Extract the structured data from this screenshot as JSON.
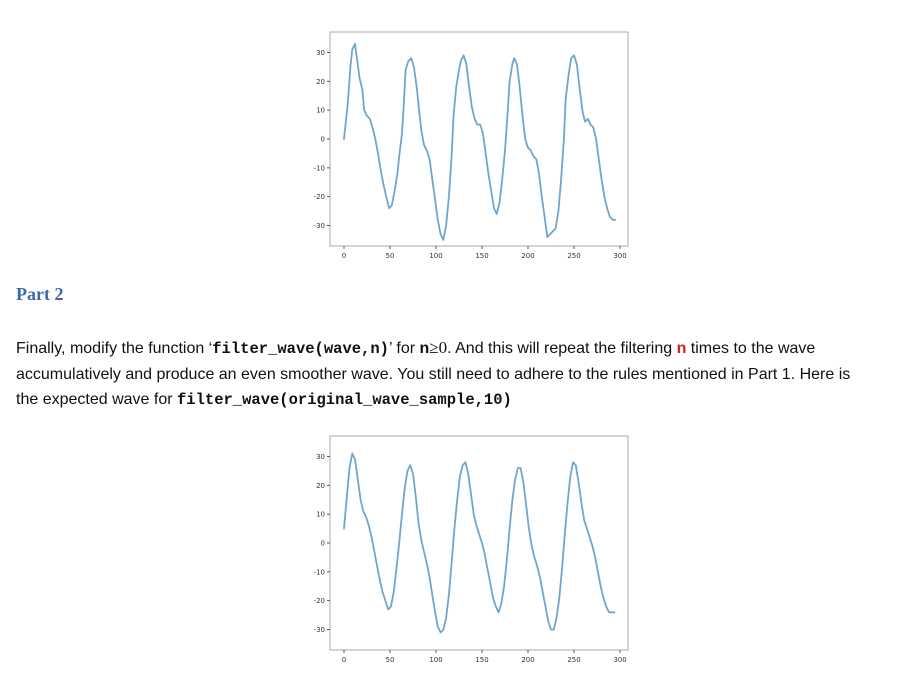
{
  "chart_data": [
    {
      "type": "line",
      "xlim": [
        0,
        300
      ],
      "ylim": [
        -35,
        35
      ],
      "x_ticks": [
        "0",
        "50",
        "100",
        "150",
        "200",
        "250",
        "300"
      ],
      "y_ticks": [
        "30",
        "20",
        "10",
        "0",
        "-10",
        "-20",
        "-30"
      ],
      "grid": false,
      "series": [
        {
          "color": "#6fa6cf",
          "x": [
            0,
            4,
            7,
            9,
            12,
            14,
            17,
            20,
            22,
            25,
            28,
            31,
            34,
            37,
            40,
            43,
            46,
            49,
            52,
            55,
            58,
            60,
            63,
            65,
            67,
            70,
            73,
            76,
            79,
            82,
            84,
            87,
            90,
            93,
            96,
            99,
            102,
            105,
            108,
            111,
            114,
            117,
            119,
            122,
            125,
            127,
            130,
            133,
            136,
            139,
            142,
            145,
            148,
            151,
            154,
            157,
            160,
            163,
            166,
            169,
            172,
            175,
            178,
            180,
            183,
            185,
            188,
            191,
            194,
            197,
            200,
            203,
            206,
            209,
            212,
            215,
            218,
            221,
            224,
            227,
            230,
            233,
            236,
            239,
            241,
            244,
            247,
            250,
            253,
            256,
            259,
            262,
            265,
            268,
            271,
            274,
            277,
            280,
            283,
            286,
            289,
            292,
            295
          ],
          "y": [
            0,
            12,
            25,
            31,
            33,
            28,
            21,
            17,
            10,
            8,
            7,
            4,
            0,
            -5,
            -11,
            -16,
            -20,
            -24,
            -23,
            -18,
            -12,
            -6,
            2,
            12,
            24,
            27,
            28,
            25,
            18,
            9,
            3,
            -2,
            -4,
            -7,
            -14,
            -21,
            -28,
            -33,
            -35,
            -30,
            -20,
            -6,
            8,
            18,
            24,
            27,
            29,
            26,
            18,
            11,
            7,
            5,
            5,
            2,
            -5,
            -12,
            -18,
            -24,
            -26,
            -22,
            -14,
            -4,
            10,
            20,
            26,
            28,
            26,
            18,
            8,
            0,
            -3,
            -4,
            -6,
            -7,
            -12,
            -20,
            -27,
            -34,
            -33,
            -32,
            -31,
            -25,
            -14,
            0,
            14,
            22,
            28,
            29,
            26,
            18,
            10,
            6,
            7,
            5,
            4,
            0,
            -7,
            -14,
            -20,
            -24,
            -27,
            -28,
            -28
          ]
        }
      ]
    },
    {
      "type": "line",
      "xlim": [
        0,
        300
      ],
      "ylim": [
        -35,
        35
      ],
      "x_ticks": [
        "0",
        "50",
        "100",
        "150",
        "200",
        "250",
        "300"
      ],
      "y_ticks": [
        "30",
        "20",
        "10",
        "0",
        "-10",
        "-20",
        "-30"
      ],
      "grid": false,
      "series": [
        {
          "color": "#6fa6cf",
          "x": [
            0,
            3,
            6,
            9,
            12,
            15,
            18,
            21,
            24,
            27,
            30,
            33,
            36,
            39,
            42,
            45,
            48,
            51,
            54,
            57,
            60,
            63,
            66,
            69,
            72,
            75,
            78,
            81,
            84,
            87,
            90,
            93,
            96,
            99,
            102,
            105,
            108,
            111,
            114,
            117,
            120,
            123,
            126,
            129,
            132,
            135,
            138,
            141,
            144,
            147,
            150,
            153,
            156,
            159,
            162,
            165,
            168,
            171,
            174,
            177,
            180,
            183,
            186,
            189,
            192,
            195,
            198,
            201,
            204,
            207,
            210,
            213,
            216,
            219,
            222,
            225,
            228,
            231,
            234,
            237,
            240,
            243,
            246,
            249,
            252,
            255,
            258,
            261,
            264,
            267,
            270,
            273,
            276,
            279,
            282,
            285,
            288,
            291,
            294
          ],
          "y": [
            5,
            16,
            26,
            31,
            29,
            22,
            15,
            11,
            9,
            6,
            2,
            -3,
            -8,
            -13,
            -17,
            -20,
            -23,
            -22,
            -17,
            -9,
            0,
            10,
            19,
            25,
            27,
            24,
            16,
            7,
            1,
            -3,
            -7,
            -12,
            -18,
            -24,
            -29,
            -31,
            -30,
            -26,
            -18,
            -7,
            5,
            15,
            23,
            27,
            28,
            24,
            17,
            10,
            6,
            3,
            0,
            -4,
            -9,
            -14,
            -19,
            -22,
            -24,
            -21,
            -15,
            -6,
            5,
            15,
            22,
            26,
            26,
            21,
            13,
            5,
            -1,
            -5,
            -8,
            -12,
            -17,
            -22,
            -27,
            -30,
            -30,
            -26,
            -19,
            -9,
            3,
            14,
            23,
            28,
            27,
            21,
            14,
            8,
            5,
            2,
            -1,
            -5,
            -10,
            -15,
            -19,
            -22,
            -24,
            -24,
            -24
          ]
        }
      ]
    }
  ],
  "part": {
    "heading": "Part 2",
    "line1_a": "Finally, modify the function ‘",
    "line1_code": "filter_wave(wave,n)",
    "line1_b": "’ for ",
    "line1_n": "n",
    "line1_ge": "≥",
    "line1_zero": "0",
    "line1_c": ". And this will repeat the filtering ",
    "line1_red": "n",
    "line1_d": " times to the wave",
    "line2": "accumulatively and produce an even smoother wave. You still need to adhere to the rules mentioned in Part 1. Here is",
    "line3_a": "the expected wave for ",
    "line3_code": "filter_wave(original_wave_sample,10)"
  }
}
